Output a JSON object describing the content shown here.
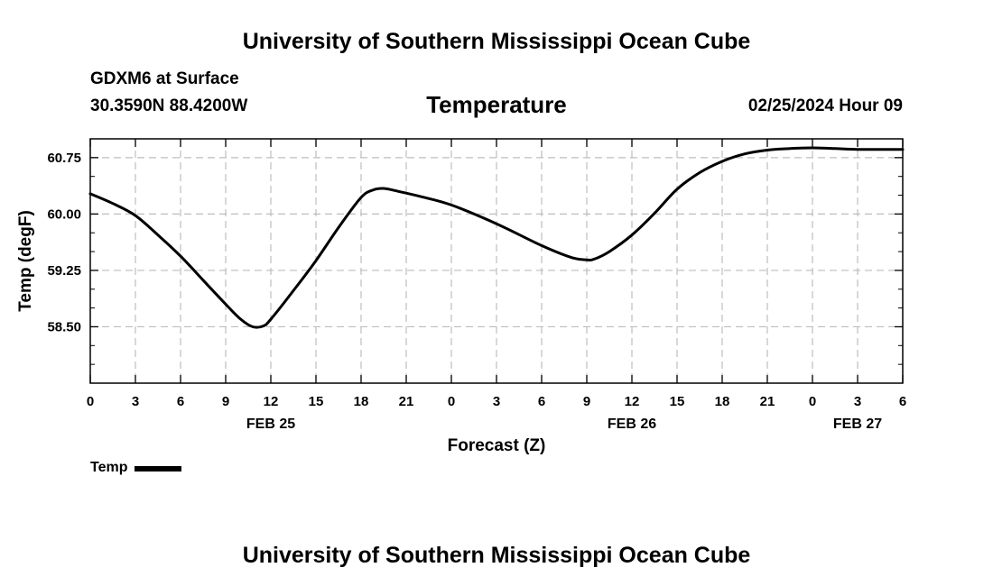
{
  "page": {
    "main_title": "University of Southern Mississippi Ocean Cube",
    "bottom_title": "University of Southern Mississippi Ocean Cube",
    "station": "GDXM6 at Surface",
    "coords": "30.3590N  88.4200W",
    "run_time": "02/25/2024 Hour 09"
  },
  "chart_data": {
    "type": "line",
    "title": "Temperature",
    "xlabel": "Forecast (Z)",
    "ylabel": "Temp (degF)",
    "x_unit": "forecast hour from 00Z Feb 25",
    "xlim": [
      0,
      54
    ],
    "ylim": [
      57.75,
      61.0
    ],
    "y_ticks": [
      58.5,
      59.25,
      60.0,
      60.75
    ],
    "y_tick_labels": [
      "58.50",
      "59.25",
      "60.00",
      "60.75"
    ],
    "x_ticks": [
      0,
      3,
      6,
      9,
      12,
      15,
      18,
      21,
      24,
      27,
      30,
      33,
      36,
      39,
      42,
      45,
      48,
      51,
      54
    ],
    "x_tick_labels": [
      "0",
      "3",
      "6",
      "9",
      "12",
      "15",
      "18",
      "21",
      "0",
      "3",
      "6",
      "9",
      "12",
      "15",
      "18",
      "21",
      "0",
      "3",
      "6"
    ],
    "date_labels": [
      {
        "x": 12,
        "text": "FEB 25"
      },
      {
        "x": 36,
        "text": "FEB 26"
      },
      {
        "x": 51,
        "text": "FEB 27"
      }
    ],
    "grid": true,
    "series": [
      {
        "name": "Temp",
        "color": "#000000",
        "x": [
          0,
          1.5,
          3,
          4.5,
          6,
          7.5,
          9,
          10,
          10.8,
          11.5,
          12,
          13.5,
          15,
          16.5,
          18,
          18.8,
          19.5,
          20.5,
          22,
          24,
          27,
          30,
          32,
          33,
          33.5,
          34.5,
          36,
          37.5,
          39,
          40.5,
          42,
          43.5,
          45,
          46.5,
          48,
          49.5,
          51,
          52.5,
          54
        ],
        "values": [
          60.27,
          60.14,
          59.98,
          59.72,
          59.44,
          59.12,
          58.8,
          58.6,
          58.5,
          58.51,
          58.6,
          58.98,
          59.38,
          59.82,
          60.22,
          60.32,
          60.34,
          60.3,
          60.23,
          60.12,
          59.87,
          59.58,
          59.42,
          59.39,
          59.4,
          59.5,
          59.72,
          60.01,
          60.33,
          60.55,
          60.7,
          60.8,
          60.85,
          60.87,
          60.88,
          60.87,
          60.86,
          60.86,
          60.86
        ]
      }
    ],
    "legend": {
      "position": "bottom-left",
      "entries": [
        "Temp"
      ]
    }
  }
}
